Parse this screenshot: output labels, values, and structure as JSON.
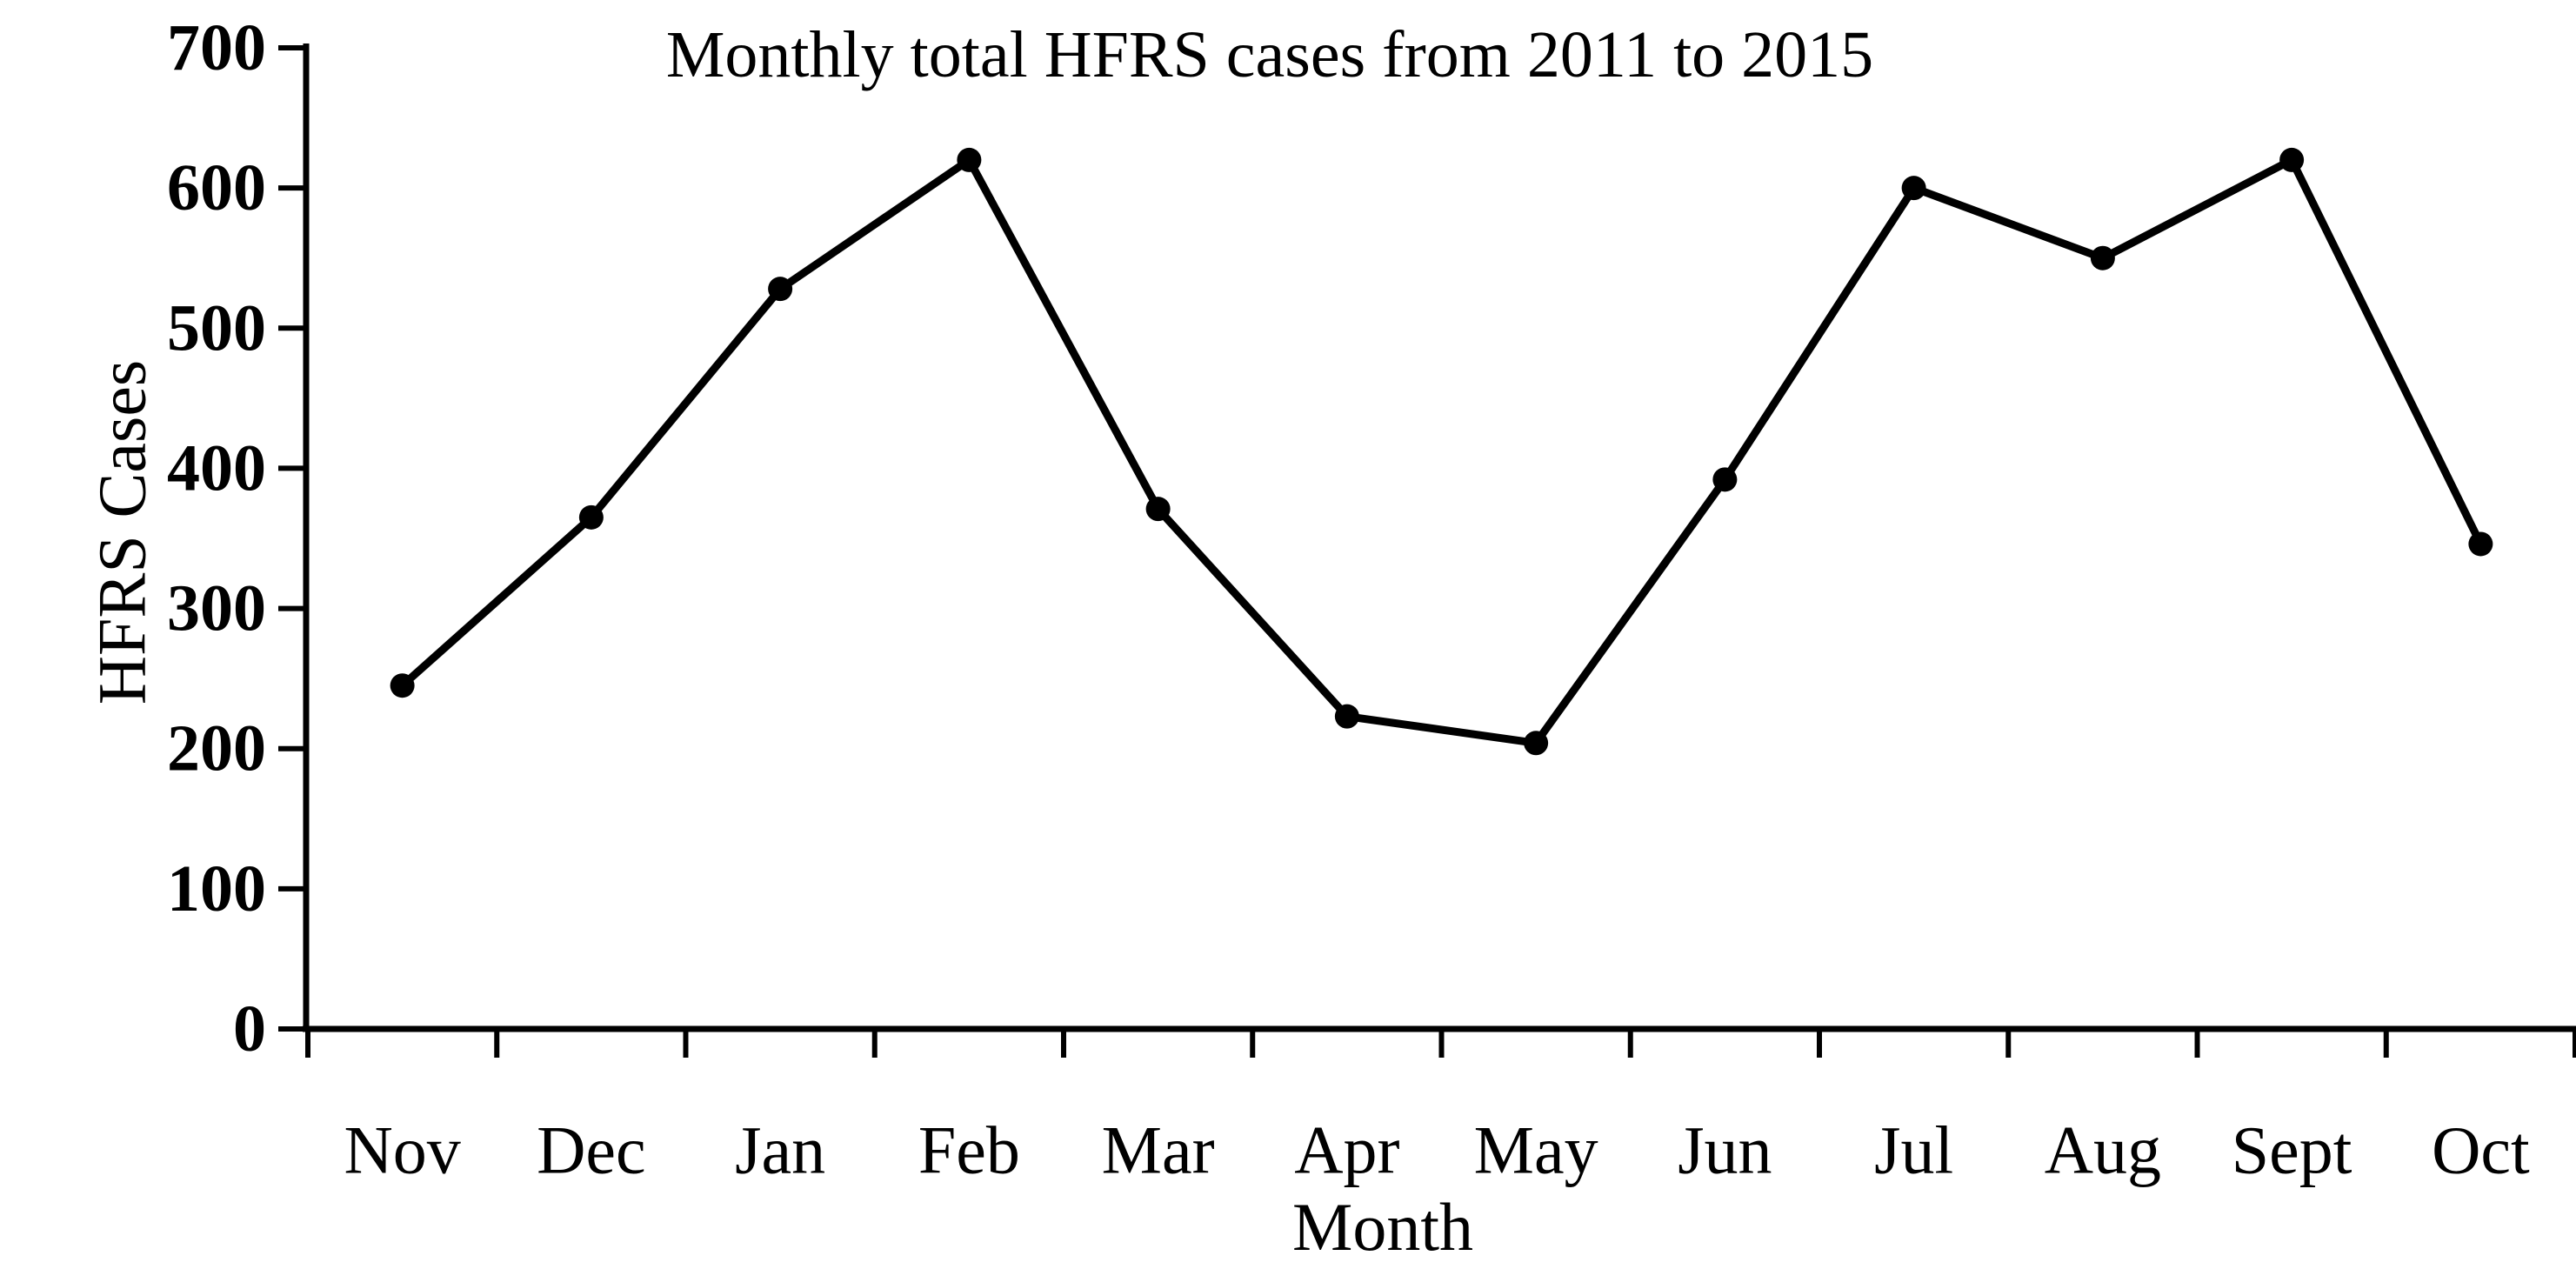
{
  "figure": {
    "background": "#ffffff",
    "foreground": "#000000"
  },
  "chart_data": {
    "type": "line",
    "title": "Monthly total HFRS cases from 2011 to 2015",
    "xlabel": "Month",
    "ylabel": "HFRS Cases",
    "categories": [
      "Nov",
      "Dec",
      "Jan",
      "Feb",
      "Mar",
      "Apr",
      "May",
      "Jun",
      "Jul",
      "Aug",
      "Sept",
      "Oct"
    ],
    "series": [
      {
        "name": "Monthly total HFRS cases",
        "values": [
          245,
          365,
          528,
          620,
          371,
          223,
          204,
          392,
          600,
          550,
          620,
          346
        ]
      }
    ],
    "ylim": [
      0,
      700
    ],
    "yticks": [
      0,
      100,
      200,
      300,
      400,
      500,
      600,
      700
    ],
    "grid": false,
    "legend_position": "none",
    "line_color": "#000000",
    "marker": "circle",
    "marker_color": "#000000"
  }
}
